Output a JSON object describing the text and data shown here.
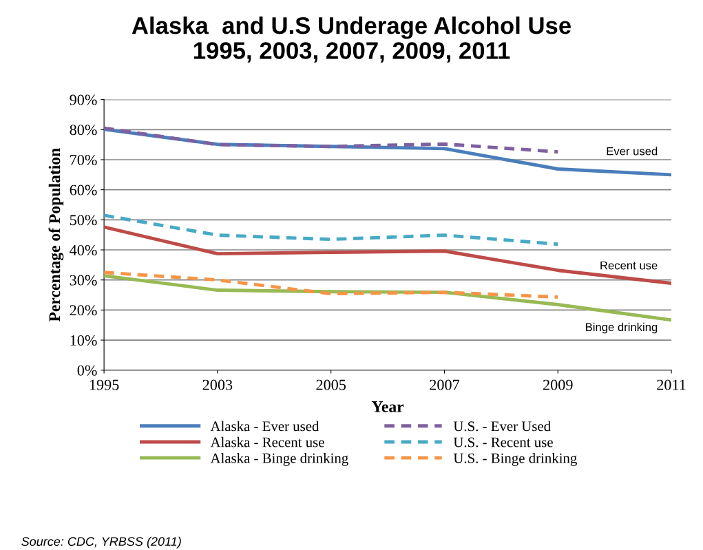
{
  "chart_data": {
    "type": "line",
    "title": "Alaska  and U.S Underage Alcohol Use\n1995, 2003, 2007, 2009, 2011",
    "xlabel": "Year",
    "ylabel": "Percentage of Population",
    "categories": [
      "1995",
      "2003",
      "2005",
      "2007",
      "2009",
      "2011"
    ],
    "series": [
      {
        "name": "Alaska - Ever used",
        "color": "#4a7ebb",
        "line_style": "solid",
        "values": [
          80.1,
          75.1,
          74.4,
          73.7,
          66.9,
          65
        ]
      },
      {
        "name": "U.S. - Ever Used",
        "color": "#7d60a0",
        "line_style": "dashed",
        "values": [
          80.5,
          75,
          74.4,
          75.2,
          72.6,
          null
        ]
      },
      {
        "name": "Alaska - Recent use",
        "color": "#be4b48",
        "line_style": "solid",
        "values": [
          47.6,
          38.7,
          39.2,
          39.6,
          33.2,
          28.9
        ]
      },
      {
        "name": "U.S. - Recent use",
        "color": "#46aac5",
        "line_style": "dashed",
        "values": [
          51.5,
          44.9,
          43.5,
          44.9,
          41.9,
          null
        ]
      },
      {
        "name": "Alaska - Binge drinking",
        "color": "#98b954",
        "line_style": "solid",
        "values": [
          31.4,
          26.6,
          26.1,
          25.9,
          21.8,
          16.7
        ]
      },
      {
        "name": "U.S. - Binge drinking",
        "color": "#f69546",
        "line_style": "dashed",
        "values": [
          32.5,
          30,
          25.4,
          25.9,
          24.3,
          null
        ]
      }
    ],
    "ylim": [
      0,
      90
    ],
    "yticks": [
      {
        "value": 0,
        "label": "0%"
      },
      {
        "value": 10,
        "label": "10%"
      },
      {
        "value": 20,
        "label": "20%"
      },
      {
        "value": 30,
        "label": "30%"
      },
      {
        "value": 40,
        "label": "40%"
      },
      {
        "value": 50,
        "label": "50%"
      },
      {
        "value": 60,
        "label": "60%"
      },
      {
        "value": 70,
        "label": "70%"
      },
      {
        "value": 80,
        "label": "80%"
      },
      {
        "value": 90,
        "label": "90%"
      }
    ],
    "grid": "y",
    "legend": "bottom",
    "marker": "none",
    "annotations": [
      "Ever used",
      "Recent use",
      "Binge drinking",
      "Source: CDC, YRBSS (2011)"
    ]
  }
}
